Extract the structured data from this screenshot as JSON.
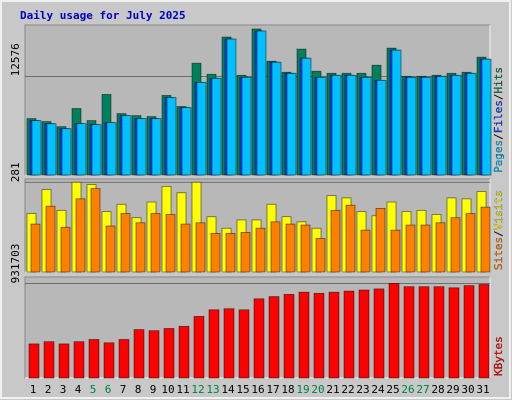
{
  "legend_separator": "/",
  "chart_data": [
    {
      "type": "bar",
      "title": "Daily usage for July 2025",
      "categories": [
        "1",
        "2",
        "3",
        "4",
        "5",
        "6",
        "7",
        "8",
        "9",
        "10",
        "11",
        "12",
        "13",
        "14",
        "15",
        "16",
        "17",
        "18",
        "19",
        "20",
        "21",
        "22",
        "23",
        "24",
        "25",
        "26",
        "27",
        "28",
        "29",
        "30",
        "31"
      ],
      "category_colors": [
        "#000000",
        "#000000",
        "#000000",
        "#000000",
        "#008040",
        "#008040",
        "#000000",
        "#000000",
        "#000000",
        "#000000",
        "#000000",
        "#008040",
        "#008040",
        "#000000",
        "#000000",
        "#000000",
        "#000000",
        "#000000",
        "#008040",
        "#008040",
        "#000000",
        "#000000",
        "#000000",
        "#000000",
        "#000000",
        "#008040",
        "#008040",
        "#000000",
        "#000000",
        "#000000",
        "#000000"
      ],
      "ylim": [
        0,
        19000
      ],
      "yticks": [
        12576
      ],
      "series": [
        {
          "name": "Hits",
          "color": "#00805c",
          "values": [
            7190,
            6805,
            6163,
            8474,
            6934,
            10272,
            7832,
            7576,
            7447,
            10144,
            8731,
            14252,
            12840,
            17591,
            12712,
            18618,
            14509,
            13097,
            16050,
            13225,
            12968,
            12968,
            12968,
            13996,
            16178,
            12583,
            12583,
            12712,
            12968,
            13097,
            15023
          ]
        },
        {
          "name": "Files",
          "color": "#0040ff",
          "values": [
            6934,
            6548,
            5906,
            6548,
            6420,
            6677,
            7576,
            7190,
            7190,
            9887,
            8603,
            11813,
            12326,
            17334,
            12455,
            18361,
            14381,
            12968,
            14894,
            12455,
            12712,
            12712,
            12455,
            12070,
            15922,
            12455,
            12455,
            12583,
            12712,
            12968,
            14766
          ]
        },
        {
          "name": "Pages",
          "color": "#00c0ff",
          "values": [
            6934,
            6548,
            5906,
            6548,
            6420,
            6677,
            7576,
            7190,
            7190,
            9887,
            8603,
            11813,
            12326,
            17334,
            12455,
            18361,
            14381,
            12968,
            14894,
            12455,
            12712,
            12712,
            12455,
            12070,
            15922,
            12455,
            12455,
            12583,
            12712,
            12968,
            14766
          ]
        }
      ]
    },
    {
      "type": "bar",
      "ylim": [
        0,
        288
      ],
      "yticks": [
        281
      ],
      "series": [
        {
          "name": "Visits",
          "color": "#ffff00",
          "values": [
            183,
            258,
            193,
            281,
            274,
            189,
            212,
            170,
            219,
            268,
            248,
            281,
            173,
            137,
            163,
            163,
            212,
            173,
            157,
            137,
            239,
            232,
            189,
            176,
            219,
            189,
            193,
            180,
            232,
            229,
            252
          ]
        },
        {
          "name": "Sites",
          "color": "#ff8000",
          "values": [
            150,
            206,
            140,
            229,
            261,
            144,
            183,
            154,
            183,
            180,
            150,
            154,
            121,
            121,
            124,
            137,
            157,
            150,
            147,
            105,
            193,
            209,
            131,
            199,
            131,
            147,
            147,
            154,
            170,
            183,
            203
          ]
        }
      ]
    },
    {
      "type": "bar",
      "ylim": [
        0,
        985000
      ],
      "yticks": [
        931703
      ],
      "series": [
        {
          "name": "KBytes",
          "color": "#ff0000",
          "values": [
            335854,
            357522,
            335854,
            357522,
            379190,
            346688,
            379190,
            476696,
            465862,
            487530,
            509198,
            606704,
            671708,
            682542,
            671708,
            780048,
            801716,
            823384,
            845052,
            834218,
            845052,
            855886,
            866720,
            877554,
            931703,
            899222,
            899222,
            899222,
            888388,
            910056,
            920890
          ]
        }
      ]
    }
  ]
}
